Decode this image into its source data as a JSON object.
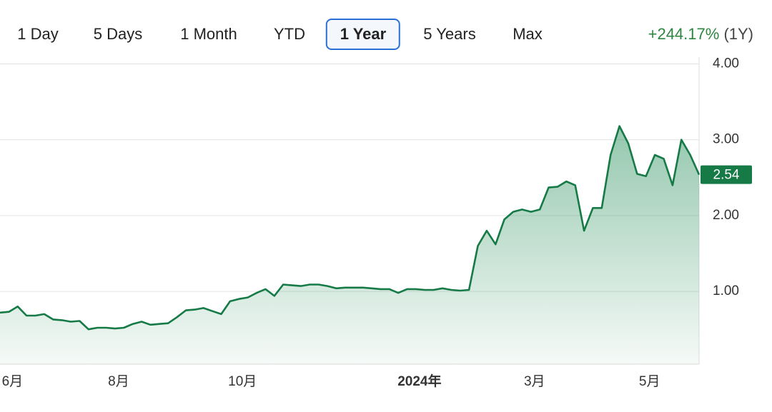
{
  "ranges": [
    "1 Day",
    "5 Days",
    "1 Month",
    "YTD",
    "1 Year",
    "5 Years",
    "Max"
  ],
  "selected_range": "1 Year",
  "change": "+244.17%",
  "change_period": "(1Y)",
  "chart_data": {
    "type": "area",
    "categories": [
      null,
      "6月",
      null,
      null,
      null,
      null,
      null,
      null,
      null,
      null,
      null,
      null,
      null,
      "8月",
      null,
      null,
      null,
      null,
      null,
      null,
      null,
      null,
      null,
      null,
      null,
      null,
      null,
      "10月",
      null,
      null,
      null,
      null,
      null,
      null,
      null,
      null,
      null,
      null,
      null,
      null,
      null,
      null,
      null,
      null,
      null,
      null,
      null,
      "2024年",
      null,
      null,
      null,
      null,
      null,
      null,
      null,
      null,
      null,
      null,
      null,
      null,
      "3月",
      null,
      null,
      null,
      null,
      null,
      null,
      null,
      null,
      null,
      null,
      null,
      null,
      "5月",
      null,
      null,
      null,
      null,
      null,
      null
    ],
    "values": [
      0.72,
      0.73,
      0.8,
      0.68,
      0.68,
      0.7,
      0.63,
      0.62,
      0.6,
      0.61,
      0.5,
      0.52,
      0.52,
      0.51,
      0.52,
      0.57,
      0.6,
      0.56,
      0.57,
      0.58,
      0.66,
      0.75,
      0.76,
      0.78,
      0.74,
      0.7,
      0.87,
      0.9,
      0.92,
      0.98,
      1.03,
      0.94,
      1.09,
      1.08,
      1.07,
      1.09,
      1.09,
      1.07,
      1.04,
      1.05,
      1.05,
      1.05,
      1.04,
      1.03,
      1.03,
      0.98,
      1.03,
      1.03,
      1.02,
      1.02,
      1.04,
      1.02,
      1.01,
      1.02,
      1.6,
      1.8,
      1.62,
      1.95,
      2.05,
      2.08,
      2.05,
      2.08,
      2.37,
      2.38,
      2.45,
      2.4,
      1.8,
      2.1,
      2.1,
      2.8,
      3.18,
      2.95,
      2.55,
      2.52,
      2.8,
      2.75,
      2.4,
      3.0,
      2.8,
      2.54
    ],
    "color": "#167a47",
    "ylim": [
      0.04,
      4.09
    ],
    "yticks": [
      {
        "value": 1,
        "label": "1.00"
      },
      {
        "value": 2,
        "label": "2.00"
      },
      {
        "value": 3,
        "label": "3.00"
      },
      {
        "value": 4,
        "label": "4.00"
      }
    ],
    "grid": true
  }
}
